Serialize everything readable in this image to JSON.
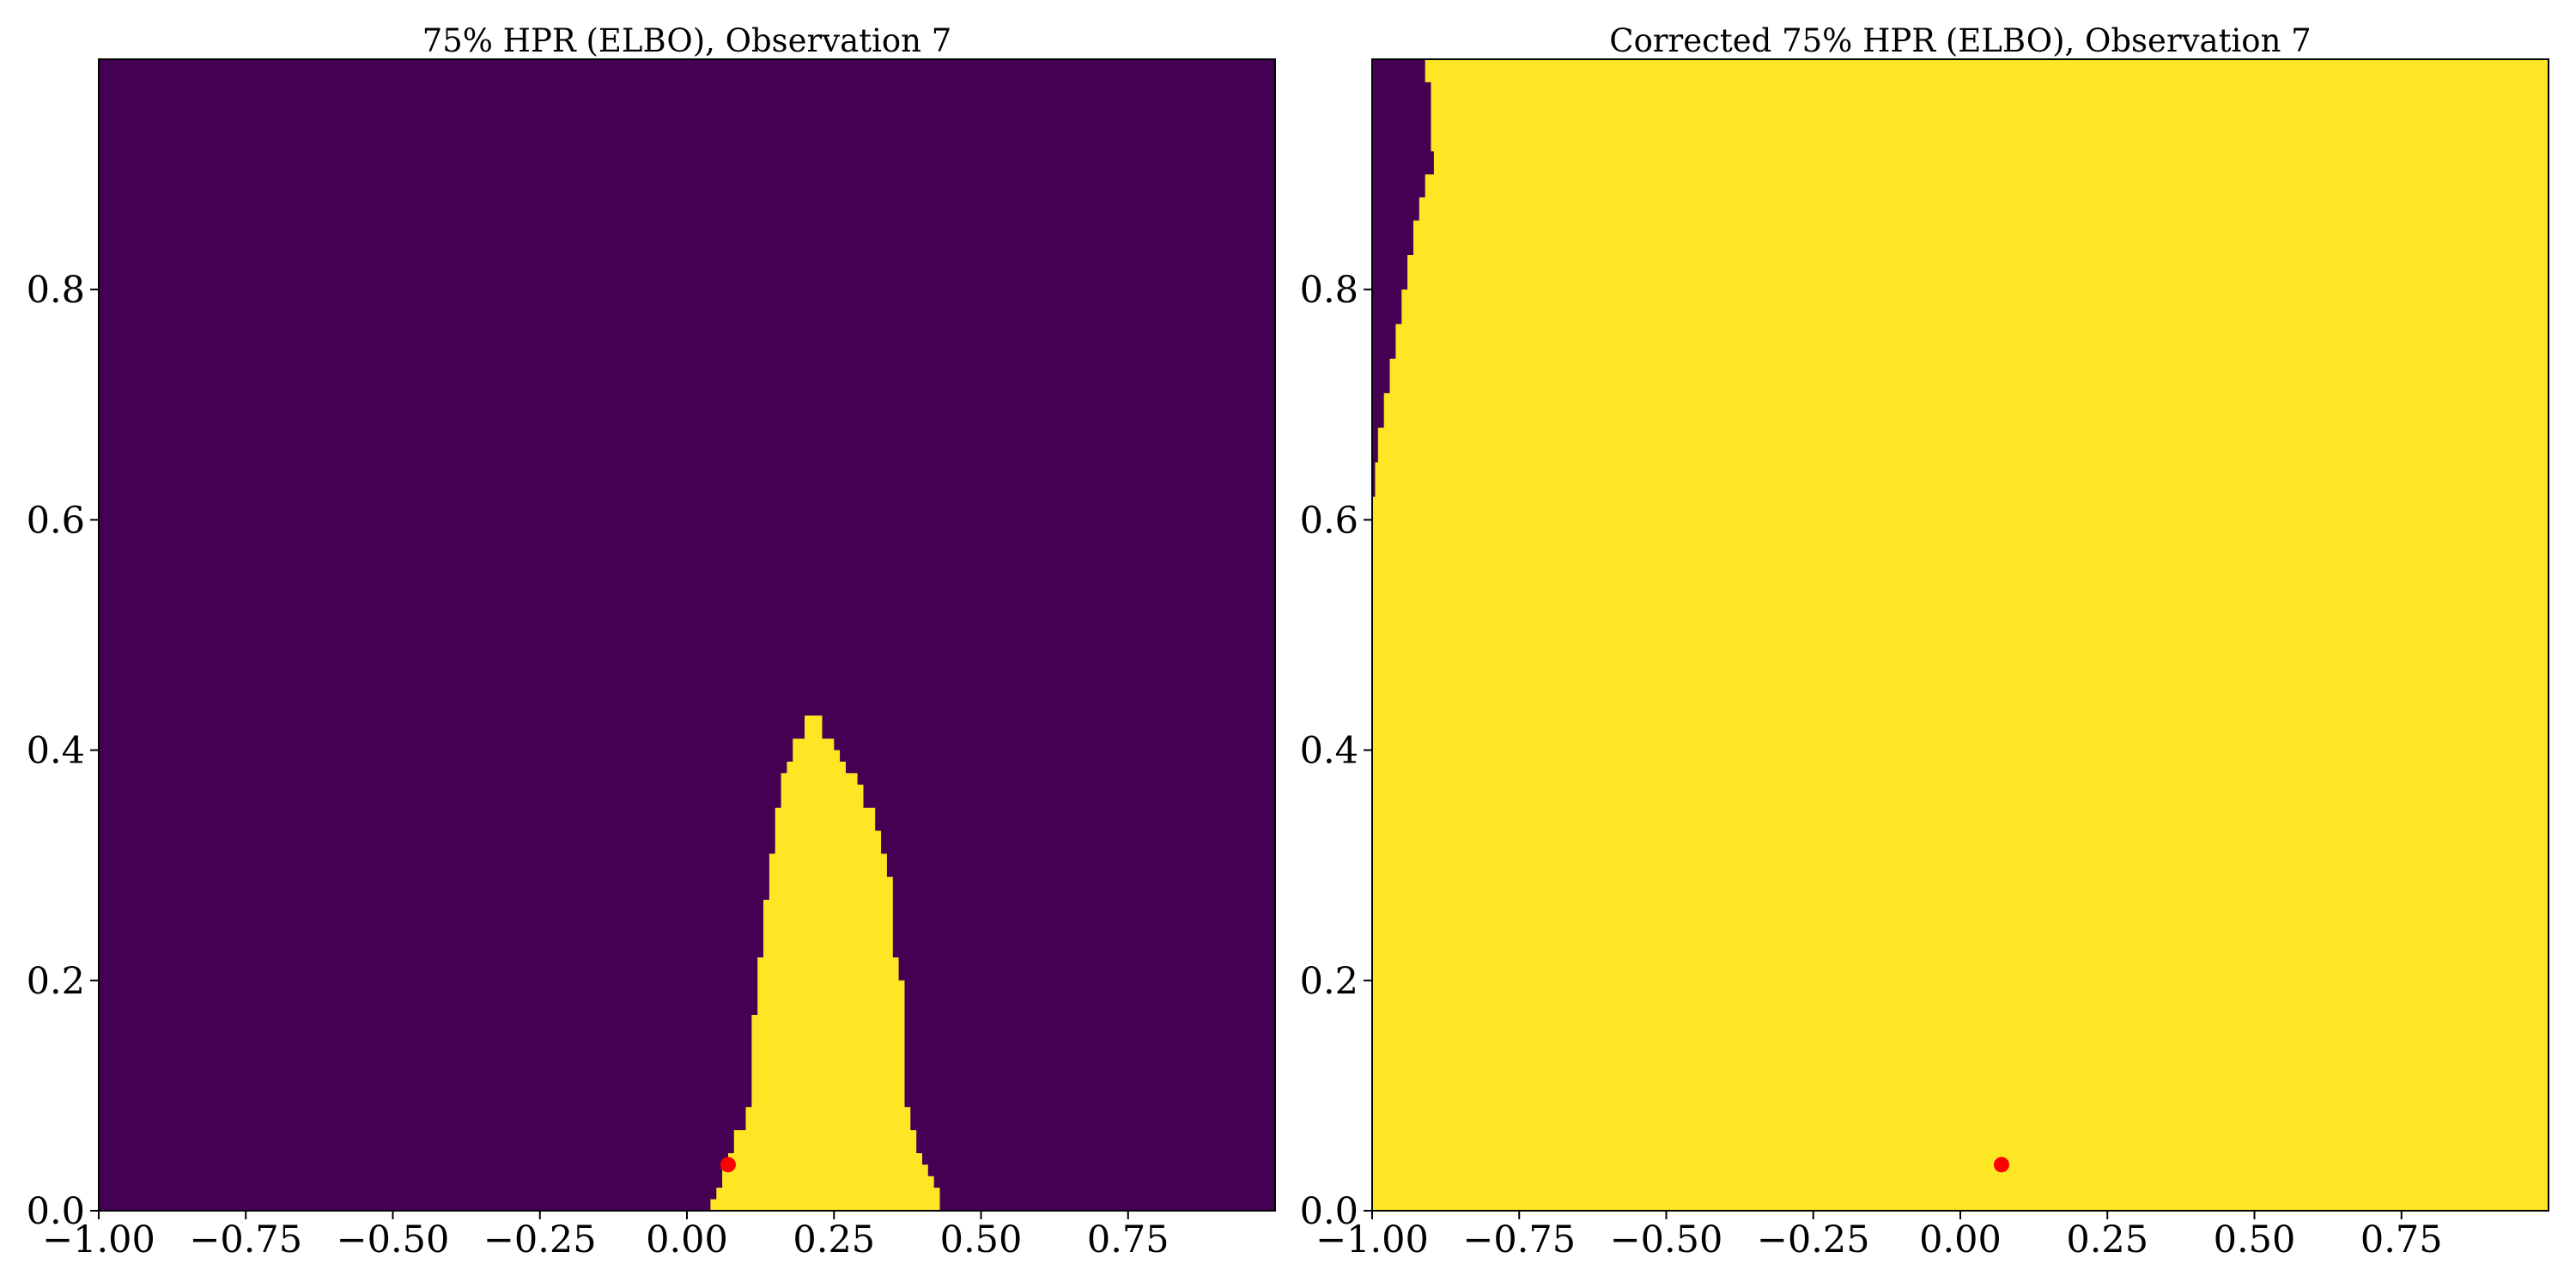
{
  "chart_data": [
    {
      "type": "heatmap",
      "title": "75% HPR (ELBO), Observation 7",
      "xlabel": "",
      "ylabel": "",
      "xlim": [
        -1.0,
        1.0
      ],
      "ylim": [
        0.0,
        1.0
      ],
      "xticks": [
        "−1.00",
        "−0.75",
        "−0.50",
        "−0.25",
        "0.00",
        "0.25",
        "0.50",
        "0.75"
      ],
      "xtick_values": [
        -1.0,
        -0.75,
        -0.5,
        -0.25,
        0.0,
        0.25,
        0.5,
        0.75
      ],
      "yticks": [
        "0.0",
        "0.2",
        "0.4",
        "0.6",
        "0.8"
      ],
      "ytick_values": [
        0.0,
        0.2,
        0.4,
        0.6,
        0.8
      ],
      "colors": {
        "outside": "#440154",
        "inside": "#fde725",
        "marker": "#ff0000"
      },
      "grid": false,
      "region_inside_hpr": {
        "description_rows": "y value and x-interval of the region inside the HPR",
        "rows": [
          {
            "y": 0.0,
            "x": [
              0.04,
              0.43
            ]
          },
          {
            "y": 0.01,
            "x": [
              0.05,
              0.43
            ]
          },
          {
            "y": 0.02,
            "x": [
              0.06,
              0.42
            ]
          },
          {
            "y": 0.03,
            "x": [
              0.06,
              0.41
            ]
          },
          {
            "y": 0.04,
            "x": [
              0.07,
              0.4
            ]
          },
          {
            "y": 0.05,
            "x": [
              0.08,
              0.39
            ]
          },
          {
            "y": 0.07,
            "x": [
              0.1,
              0.38
            ]
          },
          {
            "y": 0.09,
            "x": [
              0.11,
              0.37
            ]
          },
          {
            "y": 0.12,
            "x": [
              0.11,
              0.37
            ]
          },
          {
            "y": 0.15,
            "x": [
              0.11,
              0.37
            ]
          },
          {
            "y": 0.17,
            "x": [
              0.12,
              0.37
            ]
          },
          {
            "y": 0.2,
            "x": [
              0.12,
              0.36
            ]
          },
          {
            "y": 0.22,
            "x": [
              0.13,
              0.35
            ]
          },
          {
            "y": 0.25,
            "x": [
              0.13,
              0.35
            ]
          },
          {
            "y": 0.27,
            "x": [
              0.14,
              0.35
            ]
          },
          {
            "y": 0.29,
            "x": [
              0.14,
              0.34
            ]
          },
          {
            "y": 0.31,
            "x": [
              0.15,
              0.33
            ]
          },
          {
            "y": 0.33,
            "x": [
              0.15,
              0.32
            ]
          },
          {
            "y": 0.35,
            "x": [
              0.16,
              0.3
            ]
          },
          {
            "y": 0.37,
            "x": [
              0.16,
              0.29
            ]
          },
          {
            "y": 0.38,
            "x": [
              0.17,
              0.27
            ]
          },
          {
            "y": 0.39,
            "x": [
              0.18,
              0.26
            ]
          },
          {
            "y": 0.4,
            "x": [
              0.18,
              0.25
            ]
          },
          {
            "y": 0.41,
            "x": [
              0.2,
              0.23
            ]
          }
        ]
      },
      "marker": {
        "x": 0.07,
        "y": 0.04
      }
    },
    {
      "type": "heatmap",
      "title": "Corrected 75% HPR (ELBO), Observation 7",
      "xlabel": "",
      "ylabel": "",
      "xlim": [
        -1.0,
        1.0
      ],
      "ylim": [
        0.0,
        1.0
      ],
      "xticks": [
        "−1.00",
        "−0.75",
        "−0.50",
        "−0.25",
        "0.00",
        "0.25",
        "0.50",
        "0.75"
      ],
      "xtick_values": [
        -1.0,
        -0.75,
        -0.5,
        -0.25,
        0.0,
        0.25,
        0.5,
        0.75
      ],
      "yticks": [
        "0.0",
        "0.2",
        "0.4",
        "0.6",
        "0.8"
      ],
      "ytick_values": [
        0.0,
        0.2,
        0.4,
        0.6,
        0.8
      ],
      "colors": {
        "outside": "#440154",
        "inside": "#fde725",
        "marker": "#ff0000"
      },
      "grid": false,
      "region_outside_hpr": {
        "description_rows": "y value and x-interval of the region outside the HPR (top-left sliver)",
        "rows": [
          {
            "y": 0.62,
            "x": [
              -1.0,
              -0.995
            ]
          },
          {
            "y": 0.65,
            "x": [
              -1.0,
              -0.99
            ]
          },
          {
            "y": 0.68,
            "x": [
              -1.0,
              -0.98
            ]
          },
          {
            "y": 0.71,
            "x": [
              -1.0,
              -0.97
            ]
          },
          {
            "y": 0.74,
            "x": [
              -1.0,
              -0.96
            ]
          },
          {
            "y": 0.77,
            "x": [
              -1.0,
              -0.95
            ]
          },
          {
            "y": 0.8,
            "x": [
              -1.0,
              -0.94
            ]
          },
          {
            "y": 0.83,
            "x": [
              -1.0,
              -0.93
            ]
          },
          {
            "y": 0.86,
            "x": [
              -1.0,
              -0.92
            ]
          },
          {
            "y": 0.88,
            "x": [
              -1.0,
              -0.91
            ]
          },
          {
            "y": 0.9,
            "x": [
              -1.0,
              -0.895
            ]
          },
          {
            "y": 0.92,
            "x": [
              -1.0,
              -0.9
            ]
          },
          {
            "y": 0.95,
            "x": [
              -1.0,
              -0.9
            ]
          },
          {
            "y": 0.98,
            "x": [
              -1.0,
              -0.91
            ]
          }
        ]
      },
      "marker": {
        "x": 0.07,
        "y": 0.04
      }
    }
  ]
}
